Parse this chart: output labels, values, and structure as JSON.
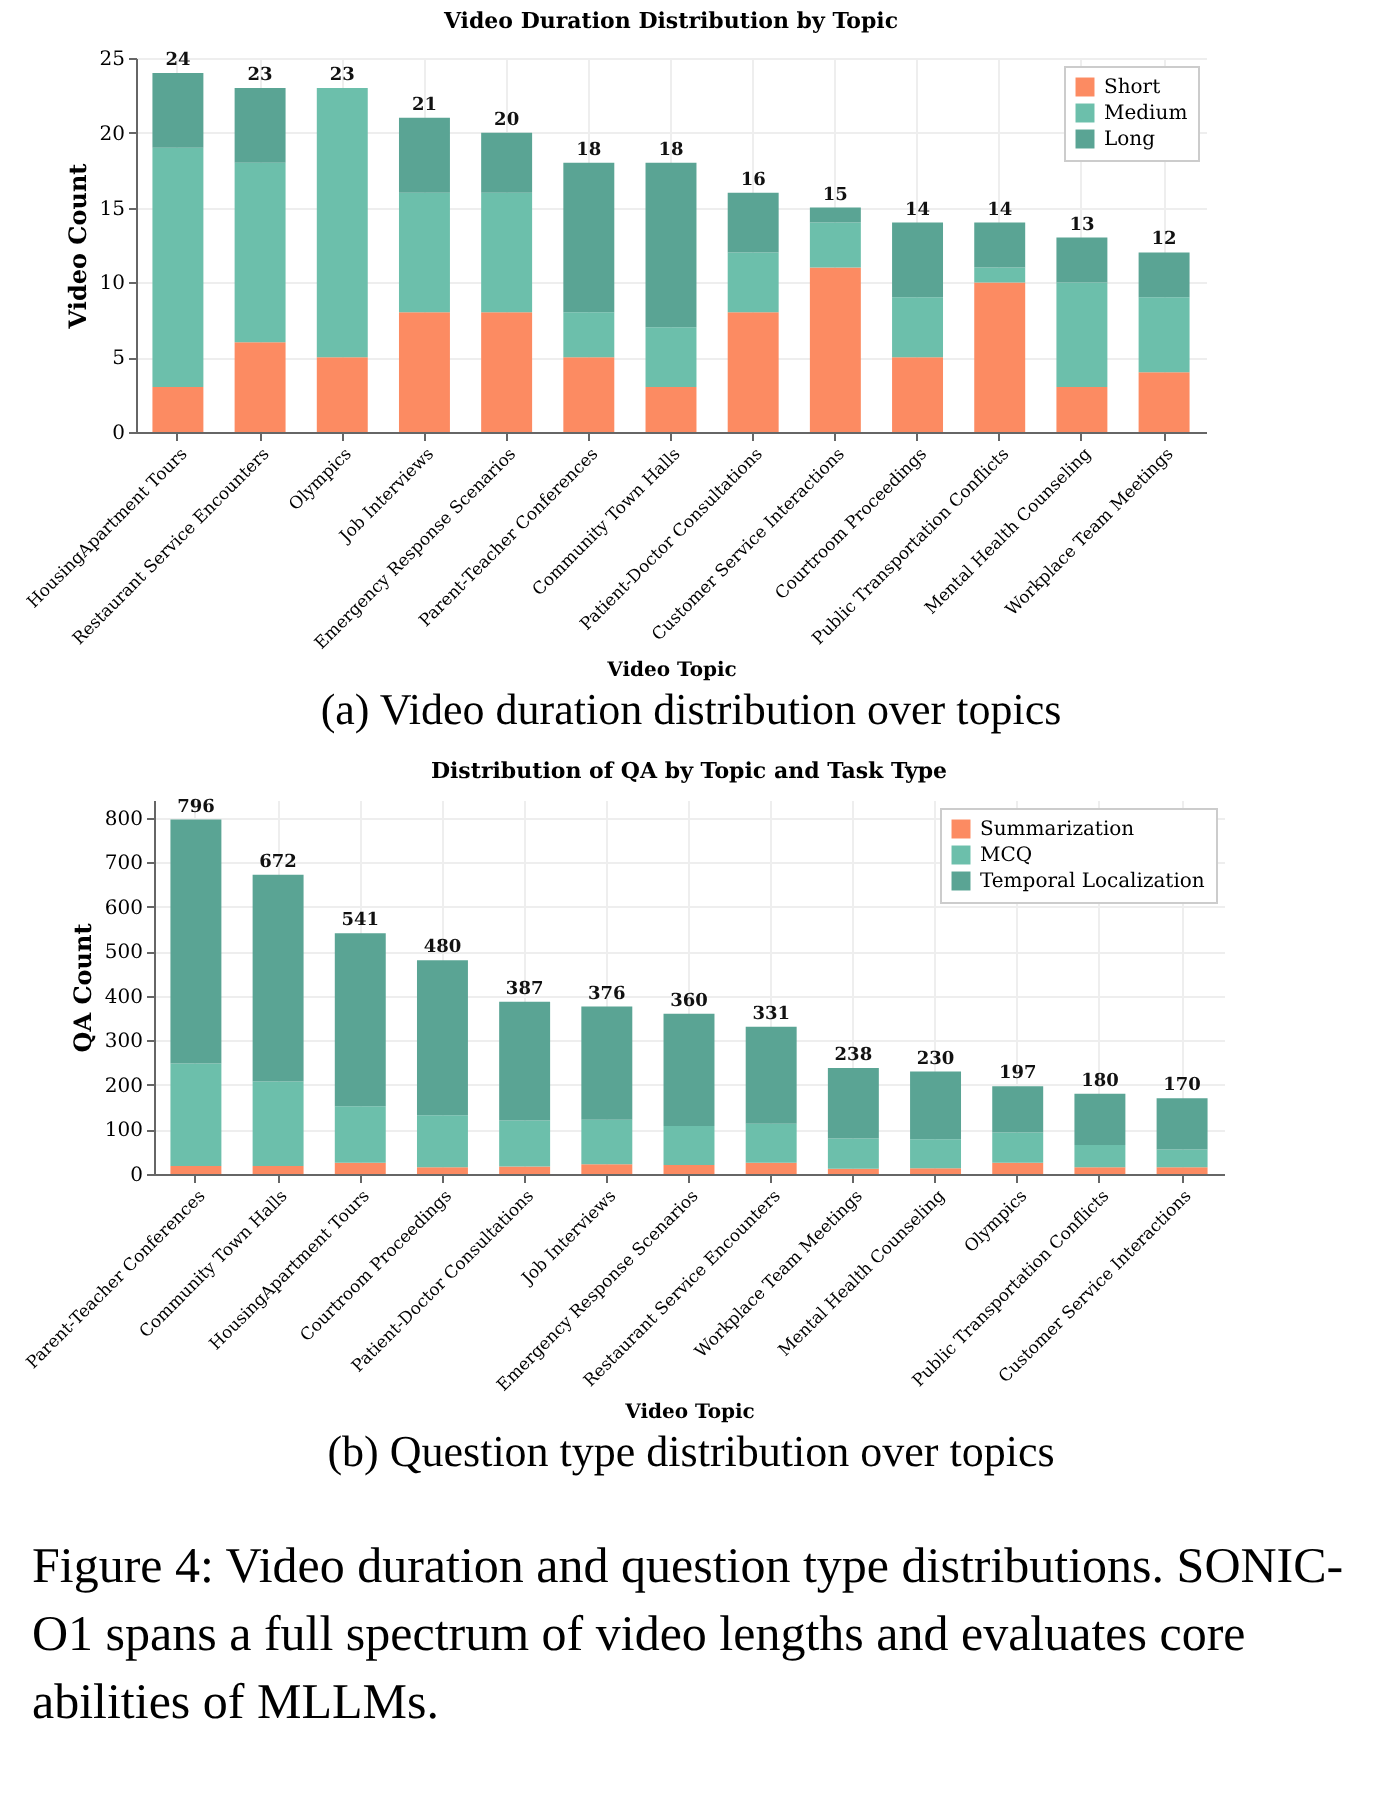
{
  "chart_data": [
    {
      "type": "bar",
      "stacked": true,
      "title": "Video Duration Distribution by Topic",
      "xlabel": "Video Topic",
      "ylabel": "Video Count",
      "categories": [
        "HousingApartment Tours",
        "Restaurant Service Encounters",
        "Olympics",
        "Job Interviews",
        "Emergency Response Scenarios",
        "Parent-Teacher Conferences",
        "Community Town Halls",
        "Patient-Doctor Consultations",
        "Customer Service Interactions",
        "Courtroom Proceedings",
        "Public Transportation Conflicts",
        "Mental Health Counseling",
        "Workplace Team Meetings"
      ],
      "series": [
        {
          "name": "Short",
          "color": "#fc8b62",
          "values": [
            3,
            6,
            5,
            8,
            8,
            5,
            3,
            8,
            11,
            5,
            10,
            3,
            4
          ]
        },
        {
          "name": "Medium",
          "color": "#6cbfab",
          "values": [
            16,
            12,
            18,
            8,
            8,
            3,
            4,
            4,
            3,
            4,
            1,
            7,
            5
          ]
        },
        {
          "name": "Long",
          "color": "#5aa494",
          "values": [
            5,
            5,
            0,
            5,
            4,
            10,
            11,
            4,
            1,
            5,
            3,
            3,
            3
          ]
        }
      ],
      "totals": [
        "24",
        "23",
        "23",
        "21",
        "20",
        "18",
        "18",
        "16",
        "15",
        "14",
        "14",
        "13",
        "12"
      ],
      "ylim": [
        0,
        25
      ],
      "yticks": [
        0,
        5,
        10,
        15,
        20,
        25
      ],
      "grid": true,
      "legend": "top right",
      "annotations": [
        "(a) Video duration distribution over topics"
      ]
    },
    {
      "type": "bar",
      "stacked": true,
      "title": "Distribution of QA by Topic and Task Type",
      "xlabel": "Video Topic",
      "ylabel": "QA Count",
      "categories": [
        "Parent-Teacher Conferences",
        "Community Town Halls",
        "HousingApartment Tours",
        "Courtroom Proceedings",
        "Patient-Doctor Consultations",
        "Job Interviews",
        "Emergency Response Scenarios",
        "Restaurant Service Encounters",
        "Workplace Team Meetings",
        "Mental Health Counseling",
        "Olympics",
        "Public Transportation Conflicts",
        "Customer Service Interactions"
      ],
      "series": [
        {
          "name": "Summarization",
          "color": "#fc8b62",
          "values": [
            18,
            18,
            25,
            15,
            17,
            22,
            20,
            25,
            12,
            13,
            25,
            15,
            15
          ]
        },
        {
          "name": "MCQ",
          "color": "#6cbfab",
          "values": [
            230,
            190,
            127,
            117,
            103,
            100,
            88,
            88,
            68,
            65,
            68,
            50,
            40
          ]
        },
        {
          "name": "Temporal Localization",
          "color": "#5aa494",
          "values": [
            548,
            464,
            389,
            348,
            267,
            254,
            252,
            218,
            158,
            152,
            104,
            115,
            115
          ]
        }
      ],
      "totals": [
        "796",
        "672",
        "541",
        "480",
        "387",
        "376",
        "360",
        "331",
        "238",
        "230",
        "197",
        "180",
        "170"
      ],
      "ylim": [
        0,
        840
      ],
      "yticks": [
        0,
        100,
        200,
        300,
        400,
        500,
        600,
        700,
        800
      ],
      "grid": true,
      "legend": "top right",
      "annotations": [
        "(b) Question type distribution over topics",
        "Figure 4: Video duration and question type distributions. SONIC-O1 spans a full spectrum of video lengths and evaluates core abilities of MLLMs."
      ]
    }
  ]
}
